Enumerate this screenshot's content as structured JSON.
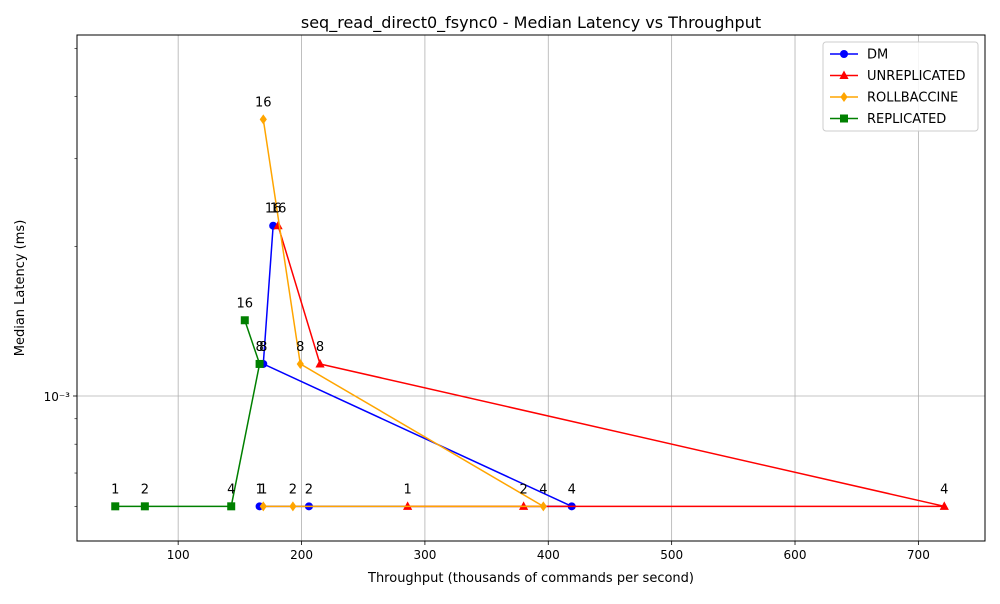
{
  "chart_data": {
    "type": "line",
    "title": "seq_read_direct0_fsync0 - Median Latency vs Throughput",
    "xlabel": "Throughput (thousands of commands per second)",
    "ylabel": "Median Latency (ms)",
    "x_scale": "linear",
    "y_scale": "log",
    "xlim": [
      18,
      754
    ],
    "ylim": [
      0.000511,
      0.00532
    ],
    "x_ticks": [
      100,
      200,
      300,
      400,
      500,
      600,
      700
    ],
    "y_major_ticks": [
      {
        "value": 0.001,
        "label": "10⁻³"
      }
    ],
    "y_minor_ticks": [
      0.0006,
      0.0007,
      0.0008,
      0.0009,
      0.002,
      0.003,
      0.004,
      0.005
    ],
    "grid": true,
    "legend_position": "top-right",
    "series": [
      {
        "name": "DM",
        "color": "#0000ff",
        "marker": "circle",
        "points": [
          {
            "x": 166,
            "y": 0.0006,
            "label": "1"
          },
          {
            "x": 206,
            "y": 0.0006,
            "label": "2"
          },
          {
            "x": 419,
            "y": 0.0006,
            "label": "4"
          },
          {
            "x": 169,
            "y": 0.00116,
            "label": "8"
          },
          {
            "x": 177,
            "y": 0.0022,
            "label": "16"
          }
        ]
      },
      {
        "name": "UNREPLICATED",
        "color": "#ff0000",
        "marker": "triangle",
        "points": [
          {
            "x": 286,
            "y": 0.0006,
            "label": "1"
          },
          {
            "x": 380,
            "y": 0.0006,
            "label": "2"
          },
          {
            "x": 721,
            "y": 0.0006,
            "label": "4"
          },
          {
            "x": 215,
            "y": 0.00116,
            "label": "8"
          },
          {
            "x": 181,
            "y": 0.0022,
            "label": "16"
          }
        ]
      },
      {
        "name": "ROLLBACCINE",
        "color": "#ffa500",
        "marker": "diamond",
        "points": [
          {
            "x": 169,
            "y": 0.0006,
            "label": "1"
          },
          {
            "x": 193,
            "y": 0.0006,
            "label": "2"
          },
          {
            "x": 396,
            "y": 0.0006,
            "label": "4"
          },
          {
            "x": 199,
            "y": 0.00116,
            "label": "8"
          },
          {
            "x": 169,
            "y": 0.0036,
            "label": "16"
          }
        ]
      },
      {
        "name": "REPLICATED",
        "color": "#008000",
        "marker": "square",
        "points": [
          {
            "x": 49,
            "y": 0.0006,
            "label": "1"
          },
          {
            "x": 73,
            "y": 0.0006,
            "label": "2"
          },
          {
            "x": 143,
            "y": 0.0006,
            "label": "4"
          },
          {
            "x": 166,
            "y": 0.00116,
            "label": "8"
          },
          {
            "x": 154,
            "y": 0.00142,
            "label": "16"
          }
        ]
      }
    ]
  }
}
